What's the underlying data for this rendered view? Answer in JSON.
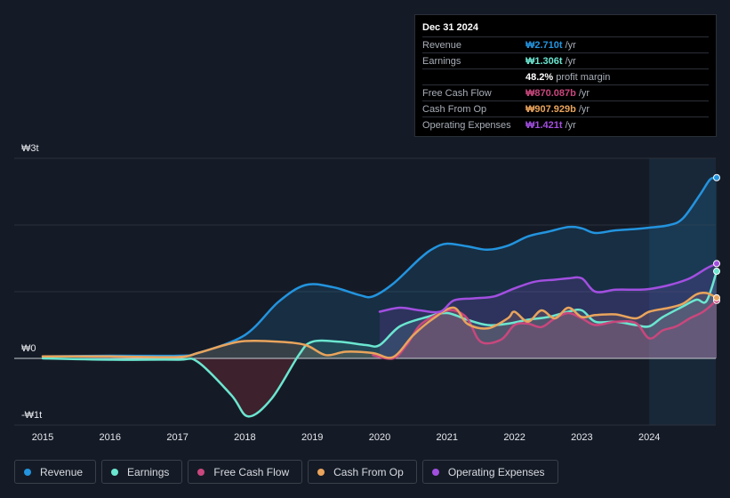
{
  "tooltip": {
    "date": "Dec 31 2024",
    "rows": [
      {
        "label": "Revenue",
        "value": "₩2.710t",
        "unit": "/yr",
        "color": "#2394df"
      },
      {
        "label": "Earnings",
        "value": "₩1.306t",
        "unit": "/yr",
        "color": "#6be6d0"
      },
      {
        "label": "",
        "value": "48.2%",
        "unit": "profit margin",
        "color": "#ffffff"
      },
      {
        "label": "Free Cash Flow",
        "value": "₩870.087b",
        "unit": "/yr",
        "color": "#c9477d"
      },
      {
        "label": "Cash From Op",
        "value": "₩907.929b",
        "unit": "/yr",
        "color": "#e9a45c"
      },
      {
        "label": "Operating Expenses",
        "value": "₩1.421t",
        "unit": "/yr",
        "color": "#a24fe0"
      }
    ]
  },
  "legend": [
    {
      "label": "Revenue",
      "color": "#2394df"
    },
    {
      "label": "Earnings",
      "color": "#6be6d0"
    },
    {
      "label": "Free Cash Flow",
      "color": "#c9477d"
    },
    {
      "label": "Cash From Op",
      "color": "#e9a45c"
    },
    {
      "label": "Operating Expenses",
      "color": "#a24fe0"
    }
  ],
  "chart_data": {
    "type": "area",
    "title": "",
    "xlabel": "",
    "ylabel": "",
    "unit": "KRW trillions",
    "ylim": [
      -1,
      3
    ],
    "y_ticks": [
      {
        "value": 3,
        "label": "₩3t"
      },
      {
        "value": 0,
        "label": "₩0"
      },
      {
        "value": -1,
        "label": "-₩1t"
      }
    ],
    "x_ticks": [
      "2015",
      "2016",
      "2017",
      "2018",
      "2019",
      "2020",
      "2021",
      "2022",
      "2023",
      "2024"
    ],
    "x_range": [
      2014.0,
      2025.0
    ],
    "highlight_from": 2024.0,
    "series": [
      {
        "name": "Revenue",
        "color": "#2394df",
        "points": [
          [
            2015.0,
            0.03
          ],
          [
            2016.0,
            0.04
          ],
          [
            2017.0,
            0.04
          ],
          [
            2017.3,
            0.08
          ],
          [
            2018.0,
            0.35
          ],
          [
            2018.5,
            0.85
          ],
          [
            2018.9,
            1.1
          ],
          [
            2019.3,
            1.07
          ],
          [
            2019.7,
            0.95
          ],
          [
            2019.9,
            0.93
          ],
          [
            2020.2,
            1.12
          ],
          [
            2020.6,
            1.5
          ],
          [
            2020.8,
            1.65
          ],
          [
            2021.0,
            1.72
          ],
          [
            2021.3,
            1.68
          ],
          [
            2021.6,
            1.63
          ],
          [
            2021.9,
            1.69
          ],
          [
            2022.2,
            1.83
          ],
          [
            2022.5,
            1.9
          ],
          [
            2022.8,
            1.97
          ],
          [
            2023.0,
            1.95
          ],
          [
            2023.2,
            1.88
          ],
          [
            2023.5,
            1.92
          ],
          [
            2023.8,
            1.94
          ],
          [
            2024.0,
            1.96
          ],
          [
            2024.3,
            2.0
          ],
          [
            2024.5,
            2.1
          ],
          [
            2024.75,
            2.45
          ],
          [
            2024.9,
            2.68
          ],
          [
            2025.0,
            2.71
          ]
        ]
      },
      {
        "name": "Earnings",
        "color": "#6be6d0",
        "points": [
          [
            2015.0,
            0.0
          ],
          [
            2016.0,
            -0.02
          ],
          [
            2017.0,
            -0.02
          ],
          [
            2017.3,
            -0.05
          ],
          [
            2017.8,
            -0.55
          ],
          [
            2018.05,
            -0.87
          ],
          [
            2018.4,
            -0.6
          ],
          [
            2018.8,
            0.05
          ],
          [
            2019.0,
            0.25
          ],
          [
            2019.4,
            0.25
          ],
          [
            2019.8,
            0.2
          ],
          [
            2020.0,
            0.2
          ],
          [
            2020.3,
            0.48
          ],
          [
            2020.7,
            0.62
          ],
          [
            2021.0,
            0.68
          ],
          [
            2021.3,
            0.58
          ],
          [
            2021.6,
            0.5
          ],
          [
            2021.9,
            0.52
          ],
          [
            2022.2,
            0.58
          ],
          [
            2022.5,
            0.62
          ],
          [
            2022.8,
            0.7
          ],
          [
            2023.0,
            0.72
          ],
          [
            2023.2,
            0.55
          ],
          [
            2023.5,
            0.55
          ],
          [
            2023.8,
            0.5
          ],
          [
            2024.0,
            0.48
          ],
          [
            2024.2,
            0.62
          ],
          [
            2024.5,
            0.78
          ],
          [
            2024.7,
            0.88
          ],
          [
            2024.85,
            0.86
          ],
          [
            2025.0,
            1.306
          ]
        ]
      },
      {
        "name": "Free Cash Flow",
        "color": "#c9477d",
        "points": [
          [
            2019.9,
            0.05
          ],
          [
            2020.2,
            0.0
          ],
          [
            2020.4,
            0.2
          ],
          [
            2020.6,
            0.5
          ],
          [
            2020.9,
            0.68
          ],
          [
            2021.1,
            0.72
          ],
          [
            2021.3,
            0.6
          ],
          [
            2021.5,
            0.25
          ],
          [
            2021.8,
            0.28
          ],
          [
            2022.0,
            0.5
          ],
          [
            2022.2,
            0.52
          ],
          [
            2022.4,
            0.47
          ],
          [
            2022.6,
            0.6
          ],
          [
            2022.8,
            0.68
          ],
          [
            2023.0,
            0.6
          ],
          [
            2023.2,
            0.5
          ],
          [
            2023.5,
            0.55
          ],
          [
            2023.8,
            0.53
          ],
          [
            2024.0,
            0.3
          ],
          [
            2024.2,
            0.42
          ],
          [
            2024.4,
            0.48
          ],
          [
            2024.6,
            0.6
          ],
          [
            2024.8,
            0.7
          ],
          [
            2025.0,
            0.87
          ]
        ]
      },
      {
        "name": "Cash From Op",
        "color": "#e9a45c",
        "points": [
          [
            2015.0,
            0.03
          ],
          [
            2016.0,
            0.03
          ],
          [
            2017.0,
            0.02
          ],
          [
            2017.3,
            0.08
          ],
          [
            2017.7,
            0.2
          ],
          [
            2018.0,
            0.26
          ],
          [
            2018.5,
            0.25
          ],
          [
            2018.9,
            0.2
          ],
          [
            2019.2,
            0.05
          ],
          [
            2019.5,
            0.1
          ],
          [
            2019.9,
            0.08
          ],
          [
            2020.2,
            0.02
          ],
          [
            2020.5,
            0.35
          ],
          [
            2020.8,
            0.6
          ],
          [
            2021.1,
            0.76
          ],
          [
            2021.3,
            0.52
          ],
          [
            2021.6,
            0.45
          ],
          [
            2021.9,
            0.6
          ],
          [
            2022.0,
            0.7
          ],
          [
            2022.2,
            0.55
          ],
          [
            2022.4,
            0.72
          ],
          [
            2022.6,
            0.6
          ],
          [
            2022.8,
            0.76
          ],
          [
            2023.0,
            0.62
          ],
          [
            2023.2,
            0.65
          ],
          [
            2023.5,
            0.66
          ],
          [
            2023.8,
            0.6
          ],
          [
            2024.0,
            0.7
          ],
          [
            2024.3,
            0.76
          ],
          [
            2024.5,
            0.82
          ],
          [
            2024.7,
            0.96
          ],
          [
            2024.85,
            0.98
          ],
          [
            2025.0,
            0.908
          ]
        ]
      },
      {
        "name": "Operating Expenses",
        "color": "#a24fe0",
        "points": [
          [
            2020.0,
            0.7
          ],
          [
            2020.3,
            0.76
          ],
          [
            2020.6,
            0.72
          ],
          [
            2020.9,
            0.7
          ],
          [
            2021.1,
            0.87
          ],
          [
            2021.4,
            0.9
          ],
          [
            2021.7,
            0.93
          ],
          [
            2022.0,
            1.05
          ],
          [
            2022.3,
            1.15
          ],
          [
            2022.6,
            1.18
          ],
          [
            2022.8,
            1.2
          ],
          [
            2023.0,
            1.2
          ],
          [
            2023.2,
            1.0
          ],
          [
            2023.5,
            1.03
          ],
          [
            2023.8,
            1.03
          ],
          [
            2024.0,
            1.04
          ],
          [
            2024.3,
            1.1
          ],
          [
            2024.6,
            1.2
          ],
          [
            2024.85,
            1.35
          ],
          [
            2025.0,
            1.421
          ]
        ]
      }
    ]
  }
}
